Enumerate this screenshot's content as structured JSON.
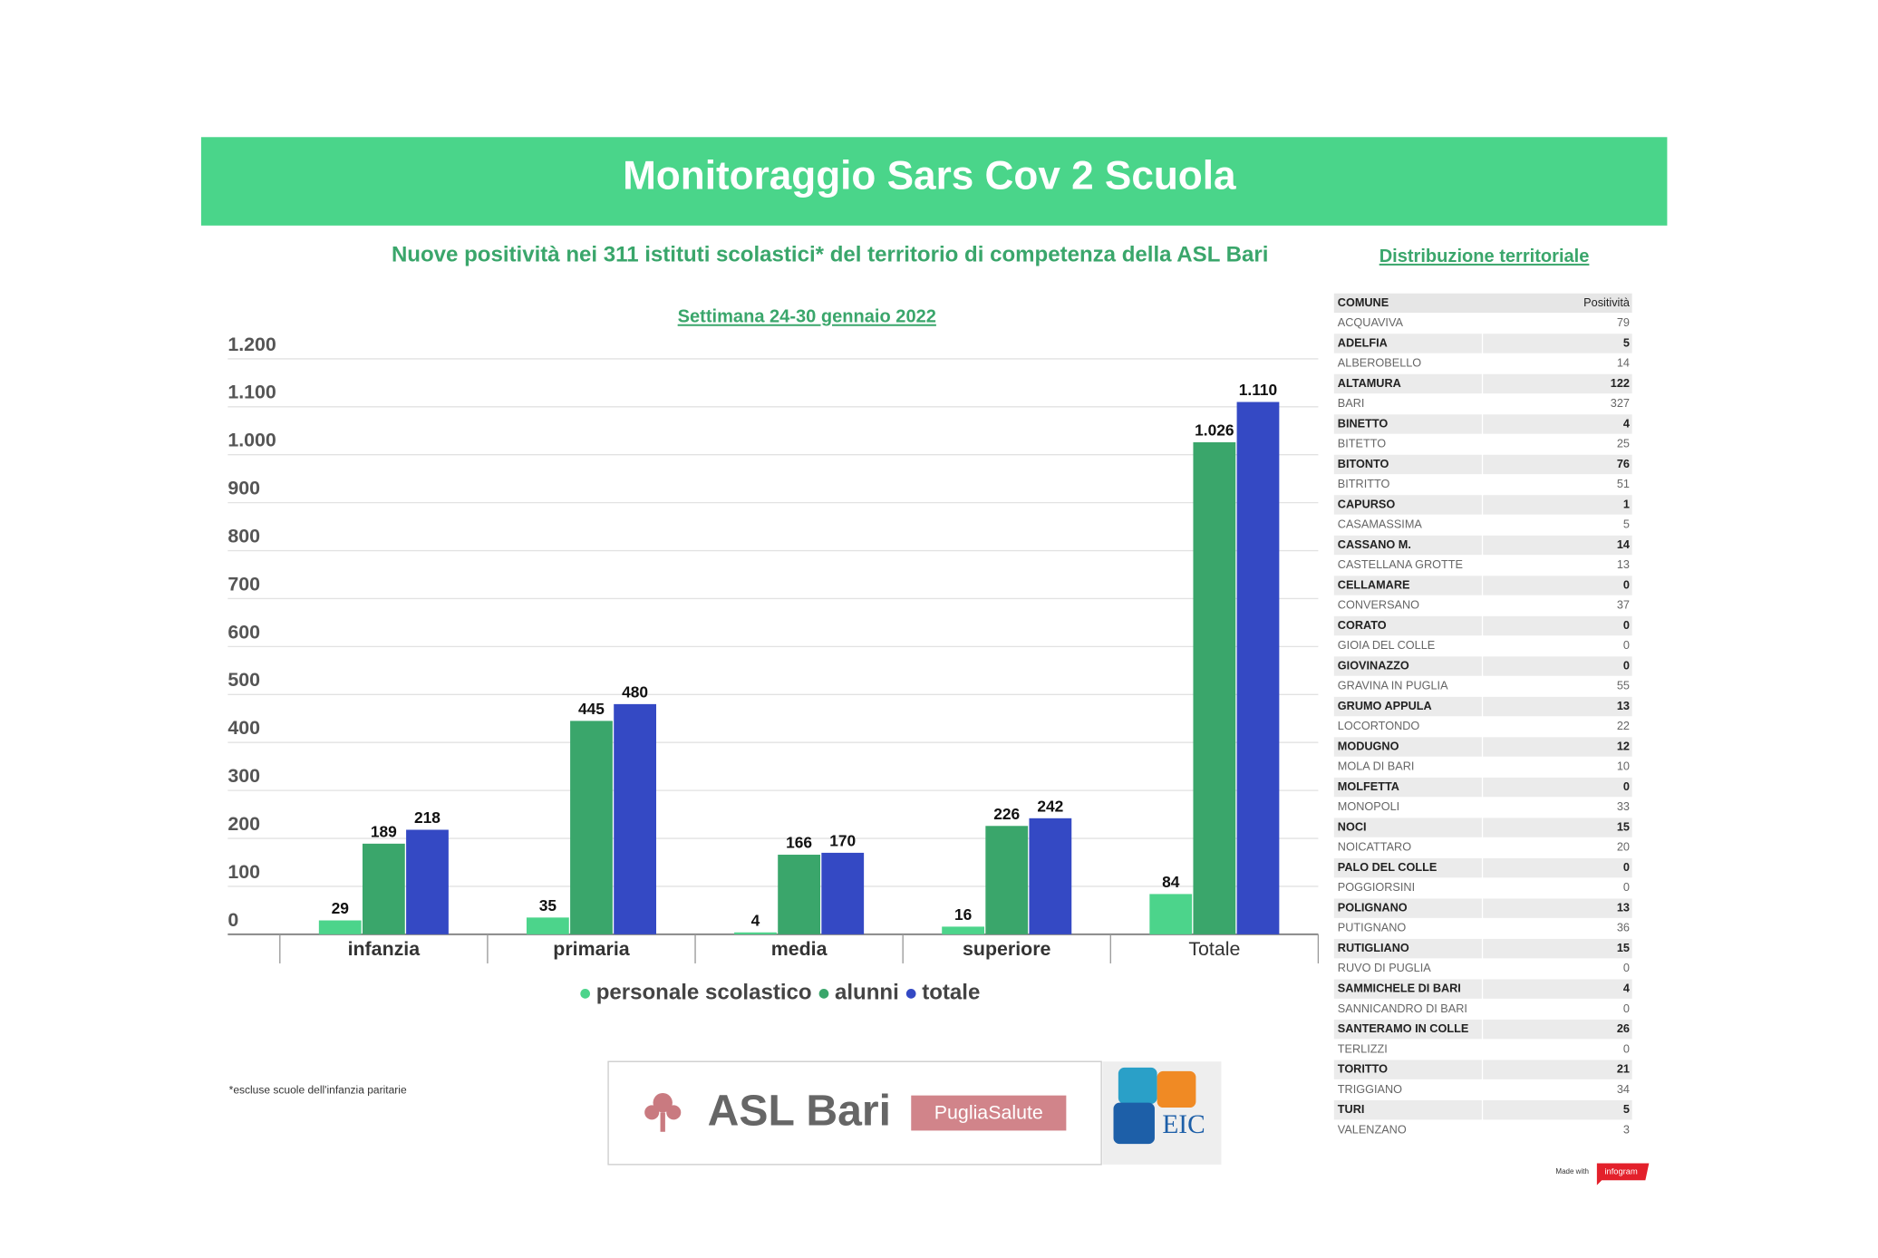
{
  "header": {
    "title": "Monitoraggio Sars Cov 2 Scuola",
    "subtitle": "Nuove positività nei 311 istituti scolastici* del territorio di competenza della ASL Bari",
    "week": "Settimana 24-30 gennaio 2022",
    "footnote": "*escluse scuole dell'infanzia paritarie"
  },
  "chart_data": {
    "type": "bar",
    "categories": [
      "infanzia",
      "primaria",
      "media",
      "superiore",
      "Totale"
    ],
    "series": [
      {
        "name": "personale scolastico",
        "color": "#4cd48b",
        "values": [
          29,
          35,
          4,
          16,
          84
        ]
      },
      {
        "name": "alunni",
        "color": "#3aa66b",
        "values": [
          189,
          445,
          166,
          226,
          1026
        ],
        "value_labels": [
          "189",
          "445",
          "166",
          "226",
          "1.026"
        ]
      },
      {
        "name": "totale",
        "color": "#3449c4",
        "values": [
          218,
          480,
          170,
          242,
          1110
        ],
        "value_labels": [
          "218",
          "480",
          "170",
          "242",
          "1.110"
        ]
      }
    ],
    "ylim": [
      0,
      1200
    ],
    "yticks": [
      0,
      100,
      200,
      300,
      400,
      500,
      600,
      700,
      800,
      900,
      {
        "value": 1000,
        "label": "1.000"
      },
      {
        "value": 1100,
        "label": "1.100"
      },
      {
        "value": 1200,
        "label": "1.200"
      }
    ],
    "grid": true,
    "legend": "bottom"
  },
  "table": {
    "title": "Distribuzione territoriale",
    "columns": [
      "COMUNE",
      "Positività"
    ],
    "rows": [
      [
        "ACQUAVIVA",
        79
      ],
      [
        "ADELFIA",
        5
      ],
      [
        "ALBEROBELLO",
        14
      ],
      [
        "ALTAMURA",
        122
      ],
      [
        "BARI",
        327
      ],
      [
        "BINETTO",
        4
      ],
      [
        "BITETTO",
        25
      ],
      [
        "BITONTO",
        76
      ],
      [
        "BITRITTO",
        51
      ],
      [
        "CAPURSO",
        1
      ],
      [
        "CASAMASSIMA",
        5
      ],
      [
        "CASSANO M.",
        14
      ],
      [
        "CASTELLANA  GROTTE",
        13
      ],
      [
        "CELLAMARE",
        0
      ],
      [
        "CONVERSANO",
        37
      ],
      [
        "CORATO",
        0
      ],
      [
        "GIOIA DEL COLLE",
        0
      ],
      [
        "GIOVINAZZO",
        0
      ],
      [
        "GRAVINA IN PUGLIA",
        55
      ],
      [
        "GRUMO APPULA",
        13
      ],
      [
        "LOCORTONDO",
        22
      ],
      [
        "MODUGNO",
        12
      ],
      [
        "MOLA DI BARI",
        10
      ],
      [
        "MOLFETTA",
        0
      ],
      [
        "MONOPOLI",
        33
      ],
      [
        "NOCI",
        15
      ],
      [
        "NOICATTARO",
        20
      ],
      [
        "PALO DEL COLLE",
        0
      ],
      [
        "POGGIORSINI",
        0
      ],
      [
        "POLIGNANO",
        13
      ],
      [
        "PUTIGNANO",
        36
      ],
      [
        "RUTIGLIANO",
        15
      ],
      [
        "RUVO DI PUGLIA",
        0
      ],
      [
        "SAMMICHELE DI BARI",
        4
      ],
      [
        "SANNICANDRO DI BARI",
        0
      ],
      [
        "SANTERAMO IN COLLE",
        26
      ],
      [
        "TERLIZZI",
        0
      ],
      [
        "TORITTO",
        21
      ],
      [
        "TRIGGIANO",
        34
      ],
      [
        "TURI",
        5
      ],
      [
        "VALENZANO",
        3
      ]
    ]
  },
  "logos": {
    "asl": "ASL Bari",
    "puglia": "PugliaSalute",
    "eic": "EIC",
    "made_with": "Made with",
    "infogram": "infogram"
  }
}
